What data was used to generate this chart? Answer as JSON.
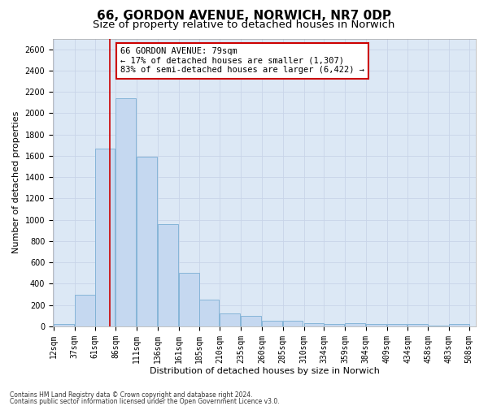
{
  "title1": "66, GORDON AVENUE, NORWICH, NR7 0DP",
  "title2": "Size of property relative to detached houses in Norwich",
  "xlabel": "Distribution of detached houses by size in Norwich",
  "ylabel": "Number of detached properties",
  "footnote1": "Contains HM Land Registry data © Crown copyright and database right 2024.",
  "footnote2": "Contains public sector information licensed under the Open Government Licence v3.0.",
  "annotation_title": "66 GORDON AVENUE: 79sqm",
  "annotation_line1": "← 17% of detached houses are smaller (1,307)",
  "annotation_line2": "83% of semi-detached houses are larger (6,422) →",
  "property_size": 79,
  "bin_starts": [
    12,
    37,
    61,
    86,
    111,
    136,
    161,
    185,
    210,
    235,
    260,
    285,
    310,
    334,
    359,
    384,
    409,
    434,
    458,
    483
  ],
  "bin_labels": [
    "12sqm",
    "37sqm",
    "61sqm",
    "86sqm",
    "111sqm",
    "136sqm",
    "161sqm",
    "185sqm",
    "210sqm",
    "235sqm",
    "260sqm",
    "285sqm",
    "310sqm",
    "334sqm",
    "359sqm",
    "384sqm",
    "409sqm",
    "434sqm",
    "458sqm",
    "483sqm",
    "508sqm"
  ],
  "bar_heights": [
    25,
    300,
    1670,
    2140,
    1590,
    960,
    500,
    250,
    120,
    100,
    50,
    50,
    30,
    20,
    30,
    20,
    20,
    20,
    5,
    25
  ],
  "bar_color": "#c5d8f0",
  "bar_edge_color": "#7bafd4",
  "vline_color": "#cc0000",
  "ylim": [
    0,
    2700
  ],
  "yticks": [
    0,
    200,
    400,
    600,
    800,
    1000,
    1200,
    1400,
    1600,
    1800,
    2000,
    2200,
    2400,
    2600
  ],
  "grid_color": "#c8d4e8",
  "fig_bg_color": "#ffffff",
  "plot_bg_color": "#dce8f5",
  "annotation_box_color": "#ffffff",
  "annotation_box_edge": "#cc0000",
  "title1_fontsize": 11,
  "title2_fontsize": 9.5,
  "tick_fontsize": 7,
  "label_fontsize": 8,
  "annotation_fontsize": 7.5
}
